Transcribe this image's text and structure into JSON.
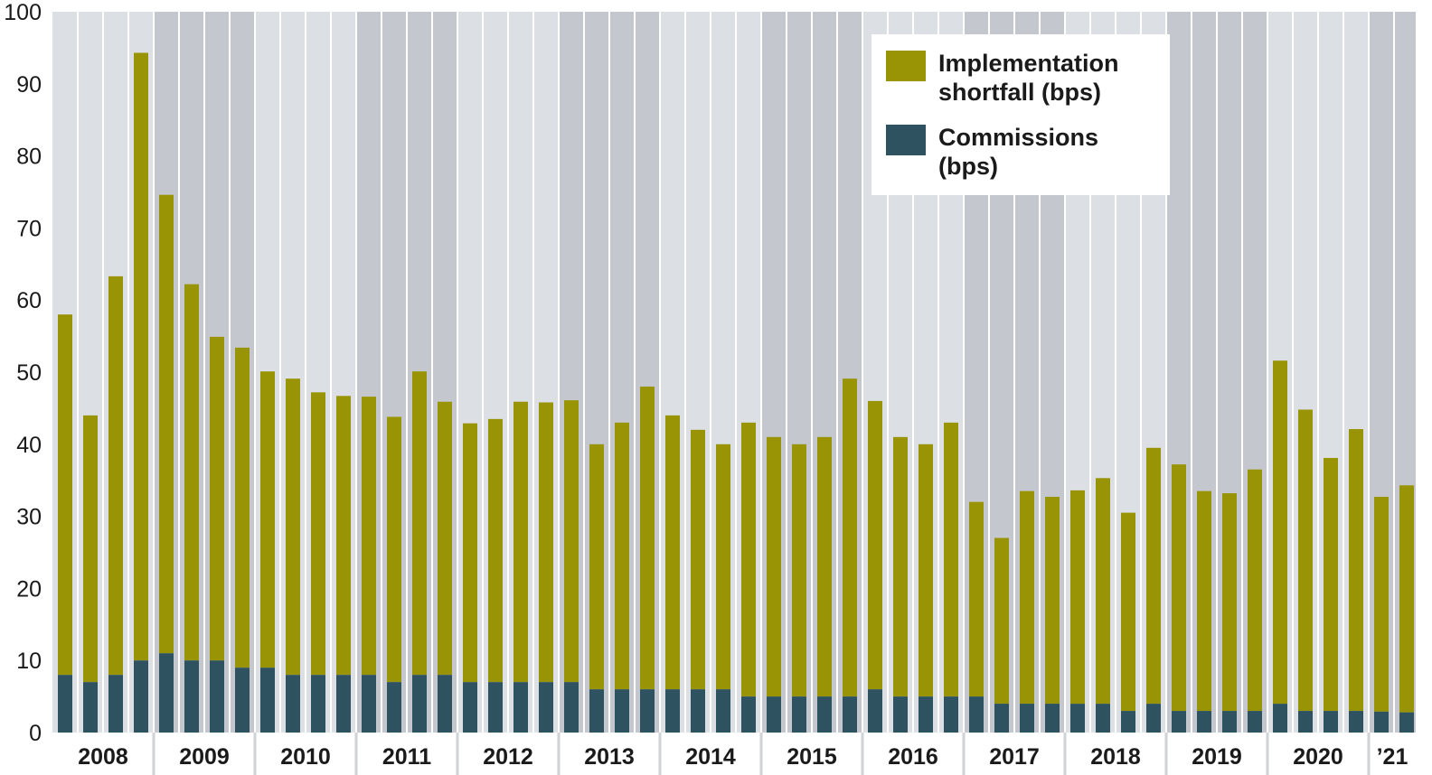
{
  "chart_data": {
    "type": "bar",
    "stacked": true,
    "title": "",
    "xlabel": "",
    "ylabel": "",
    "ylim": [
      0,
      100
    ],
    "yticks": [
      0,
      10,
      20,
      30,
      40,
      50,
      60,
      70,
      80,
      90,
      100
    ],
    "years": [
      "2008",
      "2009",
      "2010",
      "2011",
      "2012",
      "2013",
      "2014",
      "2015",
      "2016",
      "2017",
      "2018",
      "2019",
      "2020",
      "’21"
    ],
    "bars_per_year": [
      4,
      4,
      4,
      4,
      4,
      4,
      4,
      4,
      4,
      4,
      4,
      4,
      4,
      2
    ],
    "totals": [
      58,
      44,
      63.3,
      94.3,
      74.6,
      62.2,
      54.9,
      53.4,
      50.1,
      49.1,
      47.2,
      46.7,
      46.6,
      43.8,
      50.1,
      45.9,
      42.9,
      43.5,
      45.9,
      45.8,
      46.1,
      40,
      43,
      48,
      44,
      42,
      40,
      43,
      41,
      40,
      41,
      49.1,
      46,
      41,
      40,
      43,
      32,
      27,
      33.5,
      32.7,
      33.6,
      35.3,
      30.5,
      39.5,
      37.2,
      33.5,
      33.2,
      36.5,
      51.6,
      44.8,
      38.1,
      42.1,
      32.7,
      34.3
    ],
    "series": [
      {
        "name": "Commissions (bps)",
        "color": "#2f5260",
        "values": [
          8,
          7,
          8,
          10,
          11,
          10,
          10,
          9,
          9,
          8,
          8,
          8,
          8,
          7,
          8,
          8,
          7,
          7,
          7,
          7,
          7,
          6,
          6,
          6,
          6,
          6,
          6,
          5,
          5,
          5,
          5,
          5,
          6,
          5,
          5,
          5,
          5,
          4,
          4,
          4,
          4,
          4,
          3,
          4,
          3,
          3,
          3,
          3,
          4,
          3,
          3,
          3,
          2.9,
          2.8
        ]
      },
      {
        "name": "Implementation shortfall (bps)",
        "color": "#999406",
        "values": [
          50,
          37,
          55.3,
          84.3,
          63.6,
          52.2,
          44.9,
          44.4,
          41.1,
          41.1,
          39.2,
          38.7,
          38.6,
          36.8,
          42.1,
          37.9,
          35.9,
          36.5,
          38.9,
          38.8,
          39.1,
          34,
          37,
          42,
          38,
          36,
          34,
          38,
          36,
          35,
          36,
          44.1,
          40,
          36,
          35,
          38,
          27,
          23,
          29.5,
          28.7,
          29.6,
          31.3,
          27.5,
          35.5,
          34.2,
          30.5,
          30.2,
          33.5,
          47.6,
          41.8,
          35.1,
          39.1,
          29.8,
          31.5
        ]
      }
    ],
    "legend": {
      "position": "top-right",
      "entries": [
        {
          "label": "Implementation shortfall (bps)",
          "color": "#999406"
        },
        {
          "label": "Commissions (bps)",
          "color": "#2f5260"
        }
      ]
    },
    "colors": {
      "band_light": "#dcdfe3",
      "band_dark": "#c4c8ce",
      "bar_top": "#999406",
      "bar_bottom": "#2f5260"
    }
  },
  "legend_labels": {
    "implementation": "Implementation shortfall (bps)",
    "commissions": "Commissions (bps)"
  }
}
